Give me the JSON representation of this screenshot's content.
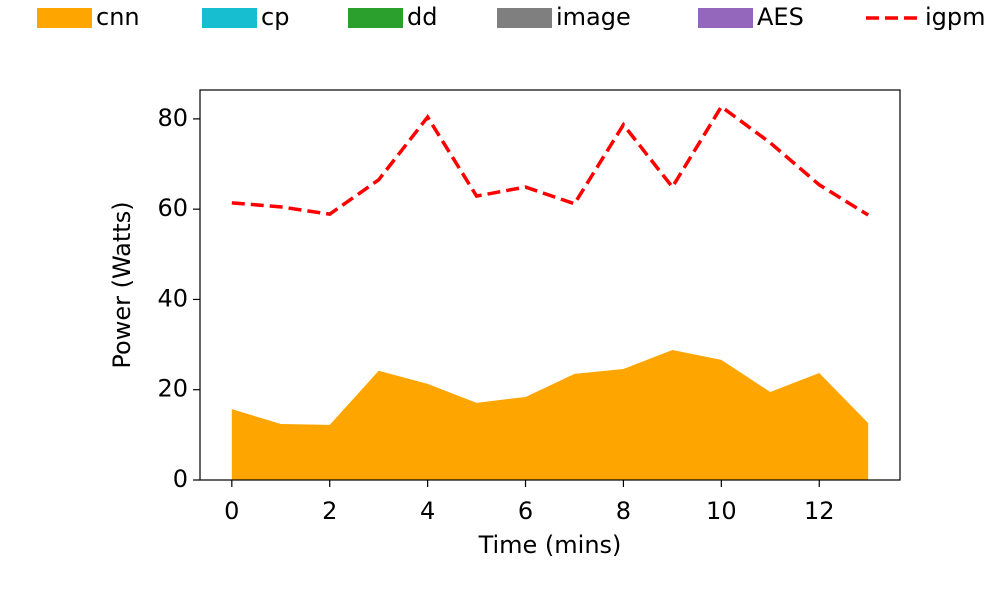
{
  "chart_data": {
    "type": "area",
    "xlabel": "Time (mins)",
    "ylabel": "Power (Watts)",
    "x": [
      0,
      1,
      2,
      3,
      4,
      5,
      6,
      7,
      8,
      9,
      10,
      11,
      12,
      13
    ],
    "series": [
      {
        "name": "cnn",
        "color": "#ffa500",
        "values": [
          15.7,
          12.4,
          12.2,
          24.2,
          21.3,
          17.1,
          18.4,
          23.5,
          24.6,
          28.8,
          26.6,
          19.5,
          23.7,
          12.6
        ]
      },
      {
        "name": "cp",
        "color": "#17becf",
        "values": [
          0,
          0,
          0,
          0,
          0,
          0,
          0,
          0,
          0,
          0,
          0,
          0,
          0,
          0
        ]
      },
      {
        "name": "dd",
        "color": "#2ca02c",
        "values": [
          0,
          0,
          0,
          0,
          0,
          0,
          0,
          0,
          0,
          0,
          0,
          0,
          0,
          0
        ]
      },
      {
        "name": "image",
        "color": "#7f7f7f",
        "values": [
          0,
          0,
          0,
          0,
          0,
          0,
          0,
          0,
          0,
          0,
          0,
          0,
          0,
          0
        ]
      },
      {
        "name": "AES",
        "color": "#9467bd",
        "values": [
          0,
          0,
          0,
          0,
          0,
          0,
          0,
          0,
          0,
          0,
          0,
          0,
          0,
          0
        ]
      },
      {
        "name": "igpm",
        "color": "#ff0000",
        "type": "line",
        "dashed": true,
        "values": [
          61.4,
          60.5,
          58.9,
          66.5,
          80.4,
          62.9,
          64.9,
          61.2,
          78.7,
          64.9,
          82.7,
          74.7,
          65.4,
          58.7
        ]
      }
    ],
    "xlim": [
      -0.65,
      13.65
    ],
    "xticks": [
      0,
      2,
      4,
      6,
      8,
      10,
      12
    ],
    "ylim": [
      0,
      86.4
    ],
    "yticks": [
      0,
      20,
      40,
      60,
      80
    ],
    "legend": "top"
  }
}
